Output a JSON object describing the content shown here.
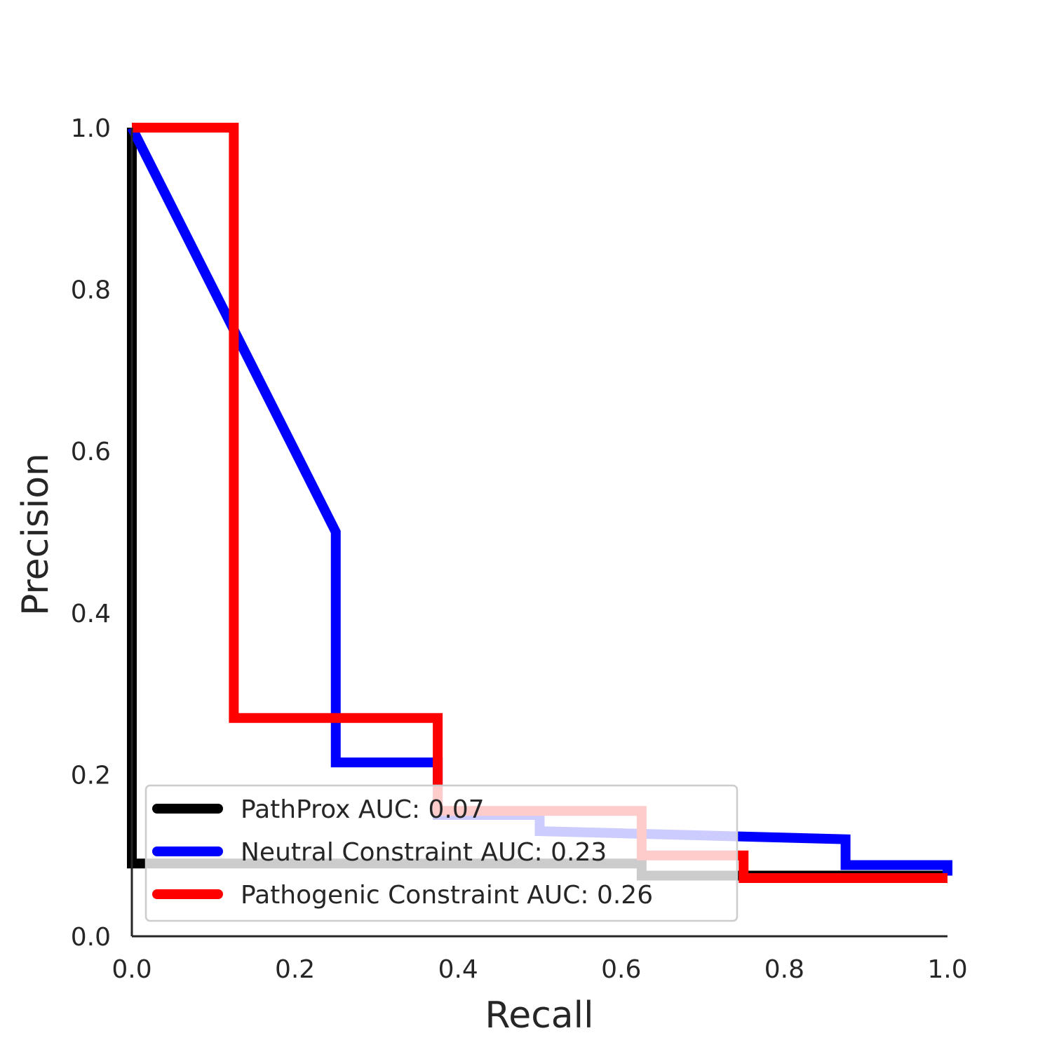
{
  "chart_data": {
    "type": "line",
    "title": "",
    "xlabel": "Recall",
    "ylabel": "Precision",
    "xlim": [
      0.0,
      1.0
    ],
    "ylim": [
      0.0,
      1.0
    ],
    "xticks": [
      "0.0",
      "0.2",
      "0.4",
      "0.6",
      "0.8",
      "1.0"
    ],
    "yticks": [
      "0.0",
      "0.2",
      "0.4",
      "0.6",
      "0.8",
      "1.0"
    ],
    "grid": false,
    "legend_position": "lower-left",
    "series": [
      {
        "name": "PathProx AUC:  0.07",
        "color": "#000000",
        "x": [
          0.0,
          0.0,
          0.625,
          0.625,
          1.0
        ],
        "y": [
          1.0,
          0.09,
          0.09,
          0.075,
          0.075
        ]
      },
      {
        "name": "Neutral Constraint AUC:  0.23",
        "color": "#0000ff",
        "x": [
          0.0,
          0.25,
          0.25,
          0.375,
          0.375,
          0.5,
          0.5,
          0.875,
          0.875,
          1.0,
          1.0
        ],
        "y": [
          1.0,
          0.5,
          0.215,
          0.215,
          0.15,
          0.15,
          0.13,
          0.12,
          0.088,
          0.088,
          0.075
        ]
      },
      {
        "name": "Pathogenic Constraint AUC:  0.26",
        "color": "#ff0000",
        "x": [
          0.0,
          0.125,
          0.125,
          0.375,
          0.375,
          0.625,
          0.625,
          0.75,
          0.75,
          1.0
        ],
        "y": [
          1.0,
          1.0,
          0.27,
          0.27,
          0.155,
          0.155,
          0.1,
          0.1,
          0.072,
          0.072
        ]
      }
    ]
  }
}
